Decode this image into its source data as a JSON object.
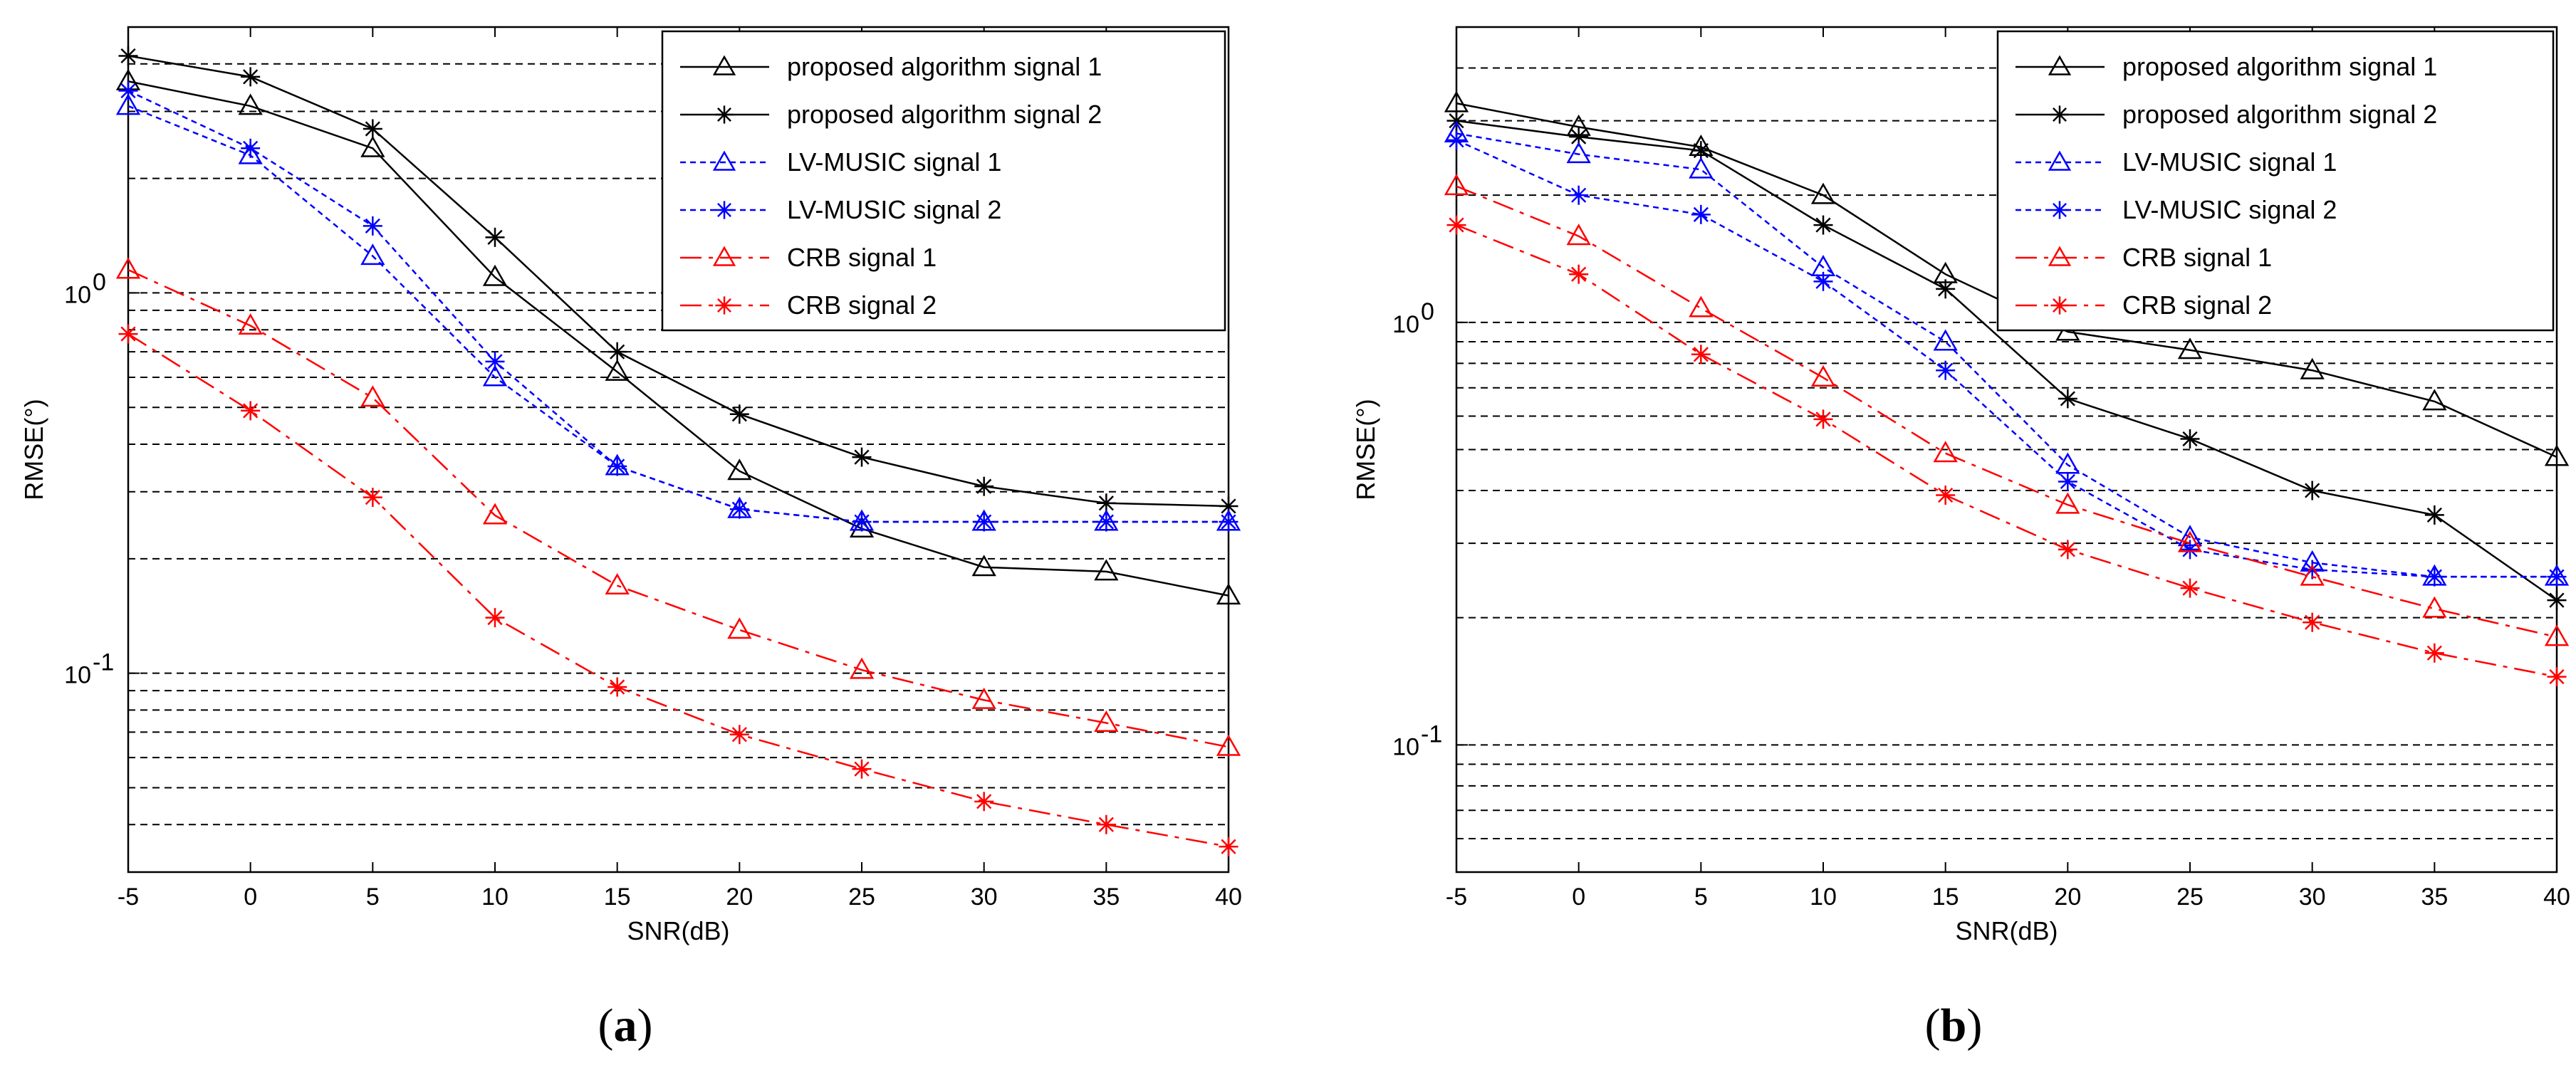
{
  "chart_data": [
    {
      "type": "line",
      "panel": "a",
      "caption": {
        "open": "(",
        "letter": "a",
        "close": ")"
      },
      "xlabel": "SNR(dB)",
      "ylabel": "RMSE(°)",
      "yscale": "log",
      "xlim": [
        -5,
        40
      ],
      "ylim": [
        0.03,
        5
      ],
      "x": [
        -5,
        0,
        5,
        10,
        15,
        20,
        25,
        30,
        35,
        40
      ],
      "xticks": [
        "-5",
        "0",
        "5",
        "10",
        "15",
        "20",
        "25",
        "30",
        "35",
        "40"
      ],
      "yticks": [
        {
          "value": 0.1,
          "base": "10",
          "exp": "-1"
        },
        {
          "value": 1,
          "base": "10",
          "exp": "0"
        }
      ],
      "grid": "dashed horizontal",
      "legend_position": "top-right",
      "series": [
        {
          "name": "proposed algorithm signal 1",
          "color": "#000000",
          "marker": "triangle",
          "dash": "solid",
          "values": [
            3.6,
            3.1,
            2.4,
            1.1,
            0.62,
            0.34,
            0.24,
            0.19,
            0.185,
            0.16
          ]
        },
        {
          "name": "proposed algorithm signal 2",
          "color": "#000000",
          "marker": "star",
          "dash": "solid",
          "values": [
            4.2,
            3.7,
            2.7,
            1.4,
            0.7,
            0.48,
            0.37,
            0.31,
            0.28,
            0.275
          ]
        },
        {
          "name": "LV-MUSIC signal 1",
          "color": "#0000ff",
          "marker": "triangle",
          "dash": "dotted",
          "values": [
            3.1,
            2.3,
            1.25,
            0.6,
            0.35,
            0.27,
            0.25,
            0.25,
            0.25,
            0.25
          ]
        },
        {
          "name": "LV-MUSIC signal 2",
          "color": "#0000ff",
          "marker": "star",
          "dash": "dotted",
          "values": [
            3.4,
            2.4,
            1.5,
            0.66,
            0.35,
            0.27,
            0.25,
            0.25,
            0.25,
            0.25
          ]
        },
        {
          "name": "CRB signal 1",
          "color": "#ff0000",
          "marker": "triangle",
          "dash": "dashdot",
          "values": [
            1.15,
            0.82,
            0.53,
            0.26,
            0.17,
            0.13,
            0.102,
            0.085,
            0.074,
            0.064
          ]
        },
        {
          "name": "CRB signal 2",
          "color": "#ff0000",
          "marker": "star",
          "dash": "dashdot",
          "values": [
            0.78,
            0.49,
            0.29,
            0.14,
            0.092,
            0.069,
            0.056,
            0.046,
            0.04,
            0.035
          ]
        }
      ]
    },
    {
      "type": "line",
      "panel": "b",
      "caption": {
        "open": "(",
        "letter": "b",
        "close": ")"
      },
      "xlabel": "SNR(dB)",
      "ylabel": "RMSE(°)",
      "yscale": "log",
      "xlim": [
        -5,
        40
      ],
      "ylim": [
        0.05,
        5
      ],
      "x": [
        -5,
        0,
        5,
        10,
        15,
        20,
        25,
        30,
        35,
        40
      ],
      "xticks": [
        "-5",
        "0",
        "5",
        "10",
        "15",
        "20",
        "25",
        "30",
        "35",
        "40"
      ],
      "yticks": [
        {
          "value": 0.1,
          "base": "10",
          "exp": "-1"
        },
        {
          "value": 1,
          "base": "10",
          "exp": "0"
        }
      ],
      "grid": "dashed horizontal",
      "legend_position": "top-right",
      "series": [
        {
          "name": "proposed algorithm signal 1",
          "color": "#000000",
          "marker": "triangle",
          "dash": "solid",
          "values": [
            3.3,
            2.9,
            2.6,
            2.0,
            1.3,
            0.95,
            0.86,
            0.77,
            0.65,
            0.48
          ]
        },
        {
          "name": "proposed algorithm signal 2",
          "color": "#000000",
          "marker": "star",
          "dash": "solid",
          "values": [
            3.0,
            2.75,
            2.55,
            1.7,
            1.2,
            0.66,
            0.53,
            0.4,
            0.35,
            0.22
          ]
        },
        {
          "name": "LV-MUSIC signal 1",
          "color": "#0000ff",
          "marker": "triangle",
          "dash": "dotted",
          "values": [
            2.8,
            2.5,
            2.3,
            1.35,
            0.9,
            0.46,
            0.31,
            0.27,
            0.25,
            0.25
          ]
        },
        {
          "name": "LV-MUSIC signal 2",
          "color": "#0000ff",
          "marker": "star",
          "dash": "dotted",
          "values": [
            2.7,
            2.0,
            1.8,
            1.25,
            0.77,
            0.42,
            0.29,
            0.26,
            0.25,
            0.25
          ]
        },
        {
          "name": "CRB signal 1",
          "color": "#ff0000",
          "marker": "triangle",
          "dash": "dashdot",
          "values": [
            2.1,
            1.6,
            1.08,
            0.74,
            0.49,
            0.37,
            0.3,
            0.25,
            0.21,
            0.18
          ]
        },
        {
          "name": "CRB signal 2",
          "color": "#ff0000",
          "marker": "star",
          "dash": "dashdot",
          "values": [
            1.7,
            1.3,
            0.84,
            0.59,
            0.39,
            0.29,
            0.235,
            0.195,
            0.165,
            0.145
          ]
        }
      ]
    }
  ]
}
